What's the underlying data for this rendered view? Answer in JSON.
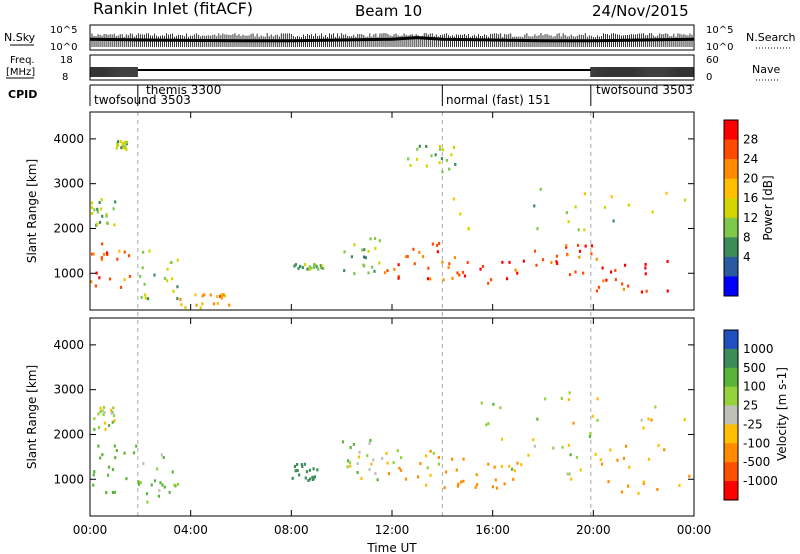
{
  "header": {
    "title": "Rankin Inlet (fitACF)",
    "beam": "Beam 10",
    "date": "24/Nov/2015"
  },
  "noise_panel": {
    "left_label": "N.Sky",
    "right_label": "N.Search",
    "left_ticks": [
      "10^5",
      "10^0"
    ],
    "right_ticks": [
      "10^5",
      "10^0"
    ]
  },
  "freq_panel": {
    "left_label_1": "Freq.",
    "left_label_2": "[MHz]",
    "right_label": "Nave",
    "left_ticks": [
      "18",
      "8"
    ],
    "right_ticks": [
      "60",
      "0"
    ]
  },
  "cpid": {
    "label": "CPID",
    "modes": [
      {
        "name": "twofsound 3503",
        "start_h": 0,
        "end_h": 1.9
      },
      {
        "name": "themis 3300",
        "start_h": 1.9,
        "end_h": 14.0
      },
      {
        "name": "normal (fast) 151",
        "start_h": 14.0,
        "end_h": 19.9
      },
      {
        "name": "twofsound 3503",
        "start_h": 19.9,
        "end_h": 24
      }
    ]
  },
  "power_panel": {
    "ylabel": "Slant Range [km]",
    "colorbar_label": "Power [dB]",
    "colorbar_ticks": [
      "28",
      "24",
      "20",
      "16",
      "12",
      "8",
      "4"
    ],
    "colorbar_colors": [
      "#ff0000",
      "#ff4a00",
      "#ff8c00",
      "#ffbf00",
      "#d4d400",
      "#7ec84a",
      "#3c8c5a",
      "#2a5aa0",
      "#0000ff"
    ]
  },
  "velocity_panel": {
    "ylabel": "Slant Range [km]",
    "colorbar_label": "Velocity [m s-1]",
    "colorbar_ticks": [
      "1000",
      "500",
      "100",
      "25",
      "-25",
      "-100",
      "-500",
      "-1000"
    ],
    "colorbar_colors": [
      "#2050c0",
      "#3c8c5a",
      "#5ab43c",
      "#96d23c",
      "#c0c0b8",
      "#ffbe00",
      "#ff8c00",
      "#ff5000",
      "#ff0000"
    ]
  },
  "chart_data": {
    "type": "heatmap",
    "xlabel": "Time UT",
    "x_ticks": [
      "00:00",
      "04:00",
      "08:00",
      "12:00",
      "16:00",
      "20:00",
      "00:00"
    ],
    "xlim_hours": [
      0,
      24
    ],
    "y_ticks": [
      "1000",
      "2000",
      "3000",
      "4000"
    ],
    "ylim_km": [
      180,
      4600
    ],
    "grid": false,
    "noise_sky_log": [
      [
        0,
        1.1
      ],
      [
        2,
        1.0
      ],
      [
        4,
        0.95
      ],
      [
        6,
        0.9
      ],
      [
        8,
        0.9
      ],
      [
        10,
        1.0
      ],
      [
        12,
        1.1
      ],
      [
        13,
        1.3
      ],
      [
        14,
        1.1
      ],
      [
        16,
        1.0
      ],
      [
        18,
        0.9
      ],
      [
        20,
        0.9
      ],
      [
        22,
        1.0
      ],
      [
        24,
        1.1
      ]
    ],
    "cpid_boundaries_h": [
      1.9,
      14.0,
      19.9
    ],
    "power_scatter_regions": [
      {
        "t": [
          0.0,
          1.9
        ],
        "r": [
          700,
          1800
        ],
        "p": 24
      },
      {
        "t": [
          1.9,
          3.5
        ],
        "r": [
          400,
          1600
        ],
        "p": 12
      },
      {
        "t": [
          3.5,
          5.5
        ],
        "r": [
          250,
          600
        ],
        "p": 20
      },
      {
        "t": [
          8.0,
          9.5
        ],
        "r": [
          1100,
          1300
        ],
        "p": 10
      },
      {
        "t": [
          10.0,
          11.5
        ],
        "r": [
          1000,
          1900
        ],
        "p": 10
      },
      {
        "t": [
          11.5,
          14.0
        ],
        "r": [
          900,
          1700
        ],
        "p": 26
      },
      {
        "t": [
          14.0,
          17.5
        ],
        "r": [
          800,
          1500
        ],
        "p": 26
      },
      {
        "t": [
          17.5,
          20.0
        ],
        "r": [
          1000,
          1700
        ],
        "p": 27
      },
      {
        "t": [
          20.0,
          23.0
        ],
        "r": [
          500,
          1400
        ],
        "p": 28
      },
      {
        "t": [
          14.0,
          24.0
        ],
        "r": [
          2000,
          3000
        ],
        "p": 14
      },
      {
        "t": [
          0.0,
          1.0
        ],
        "r": [
          2100,
          2700
        ],
        "p": 12
      },
      {
        "t": [
          1.0,
          1.5
        ],
        "r": [
          3800,
          4000
        ],
        "p": 12
      },
      {
        "t": [
          12.5,
          14.5
        ],
        "r": [
          3300,
          3900
        ],
        "p": 12
      }
    ],
    "velocity_scatter_regions": [
      {
        "t": [
          0.0,
          1.9
        ],
        "r": [
          700,
          1800
        ],
        "v": 300
      },
      {
        "t": [
          1.9,
          3.5
        ],
        "r": [
          400,
          1600
        ],
        "v": 100
      },
      {
        "t": [
          8.0,
          9.0
        ],
        "r": [
          1000,
          1400
        ],
        "v": 800
      },
      {
        "t": [
          10.0,
          11.5
        ],
        "r": [
          1000,
          1900
        ],
        "v": 50
      },
      {
        "t": [
          11.5,
          14.0
        ],
        "r": [
          900,
          1700
        ],
        "v": -50
      },
      {
        "t": [
          14.0,
          17.0
        ],
        "r": [
          800,
          1500
        ],
        "v": -300
      },
      {
        "t": [
          16.0,
          20.0
        ],
        "r": [
          1000,
          2100
        ],
        "v": 0
      },
      {
        "t": [
          20.0,
          24.0
        ],
        "r": [
          700,
          1800
        ],
        "v": -150
      },
      {
        "t": [
          14.0,
          24.0
        ],
        "r": [
          2000,
          3000
        ],
        "v": 0
      },
      {
        "t": [
          0.0,
          1.0
        ],
        "r": [
          2100,
          2700
        ],
        "v": 0
      }
    ]
  }
}
